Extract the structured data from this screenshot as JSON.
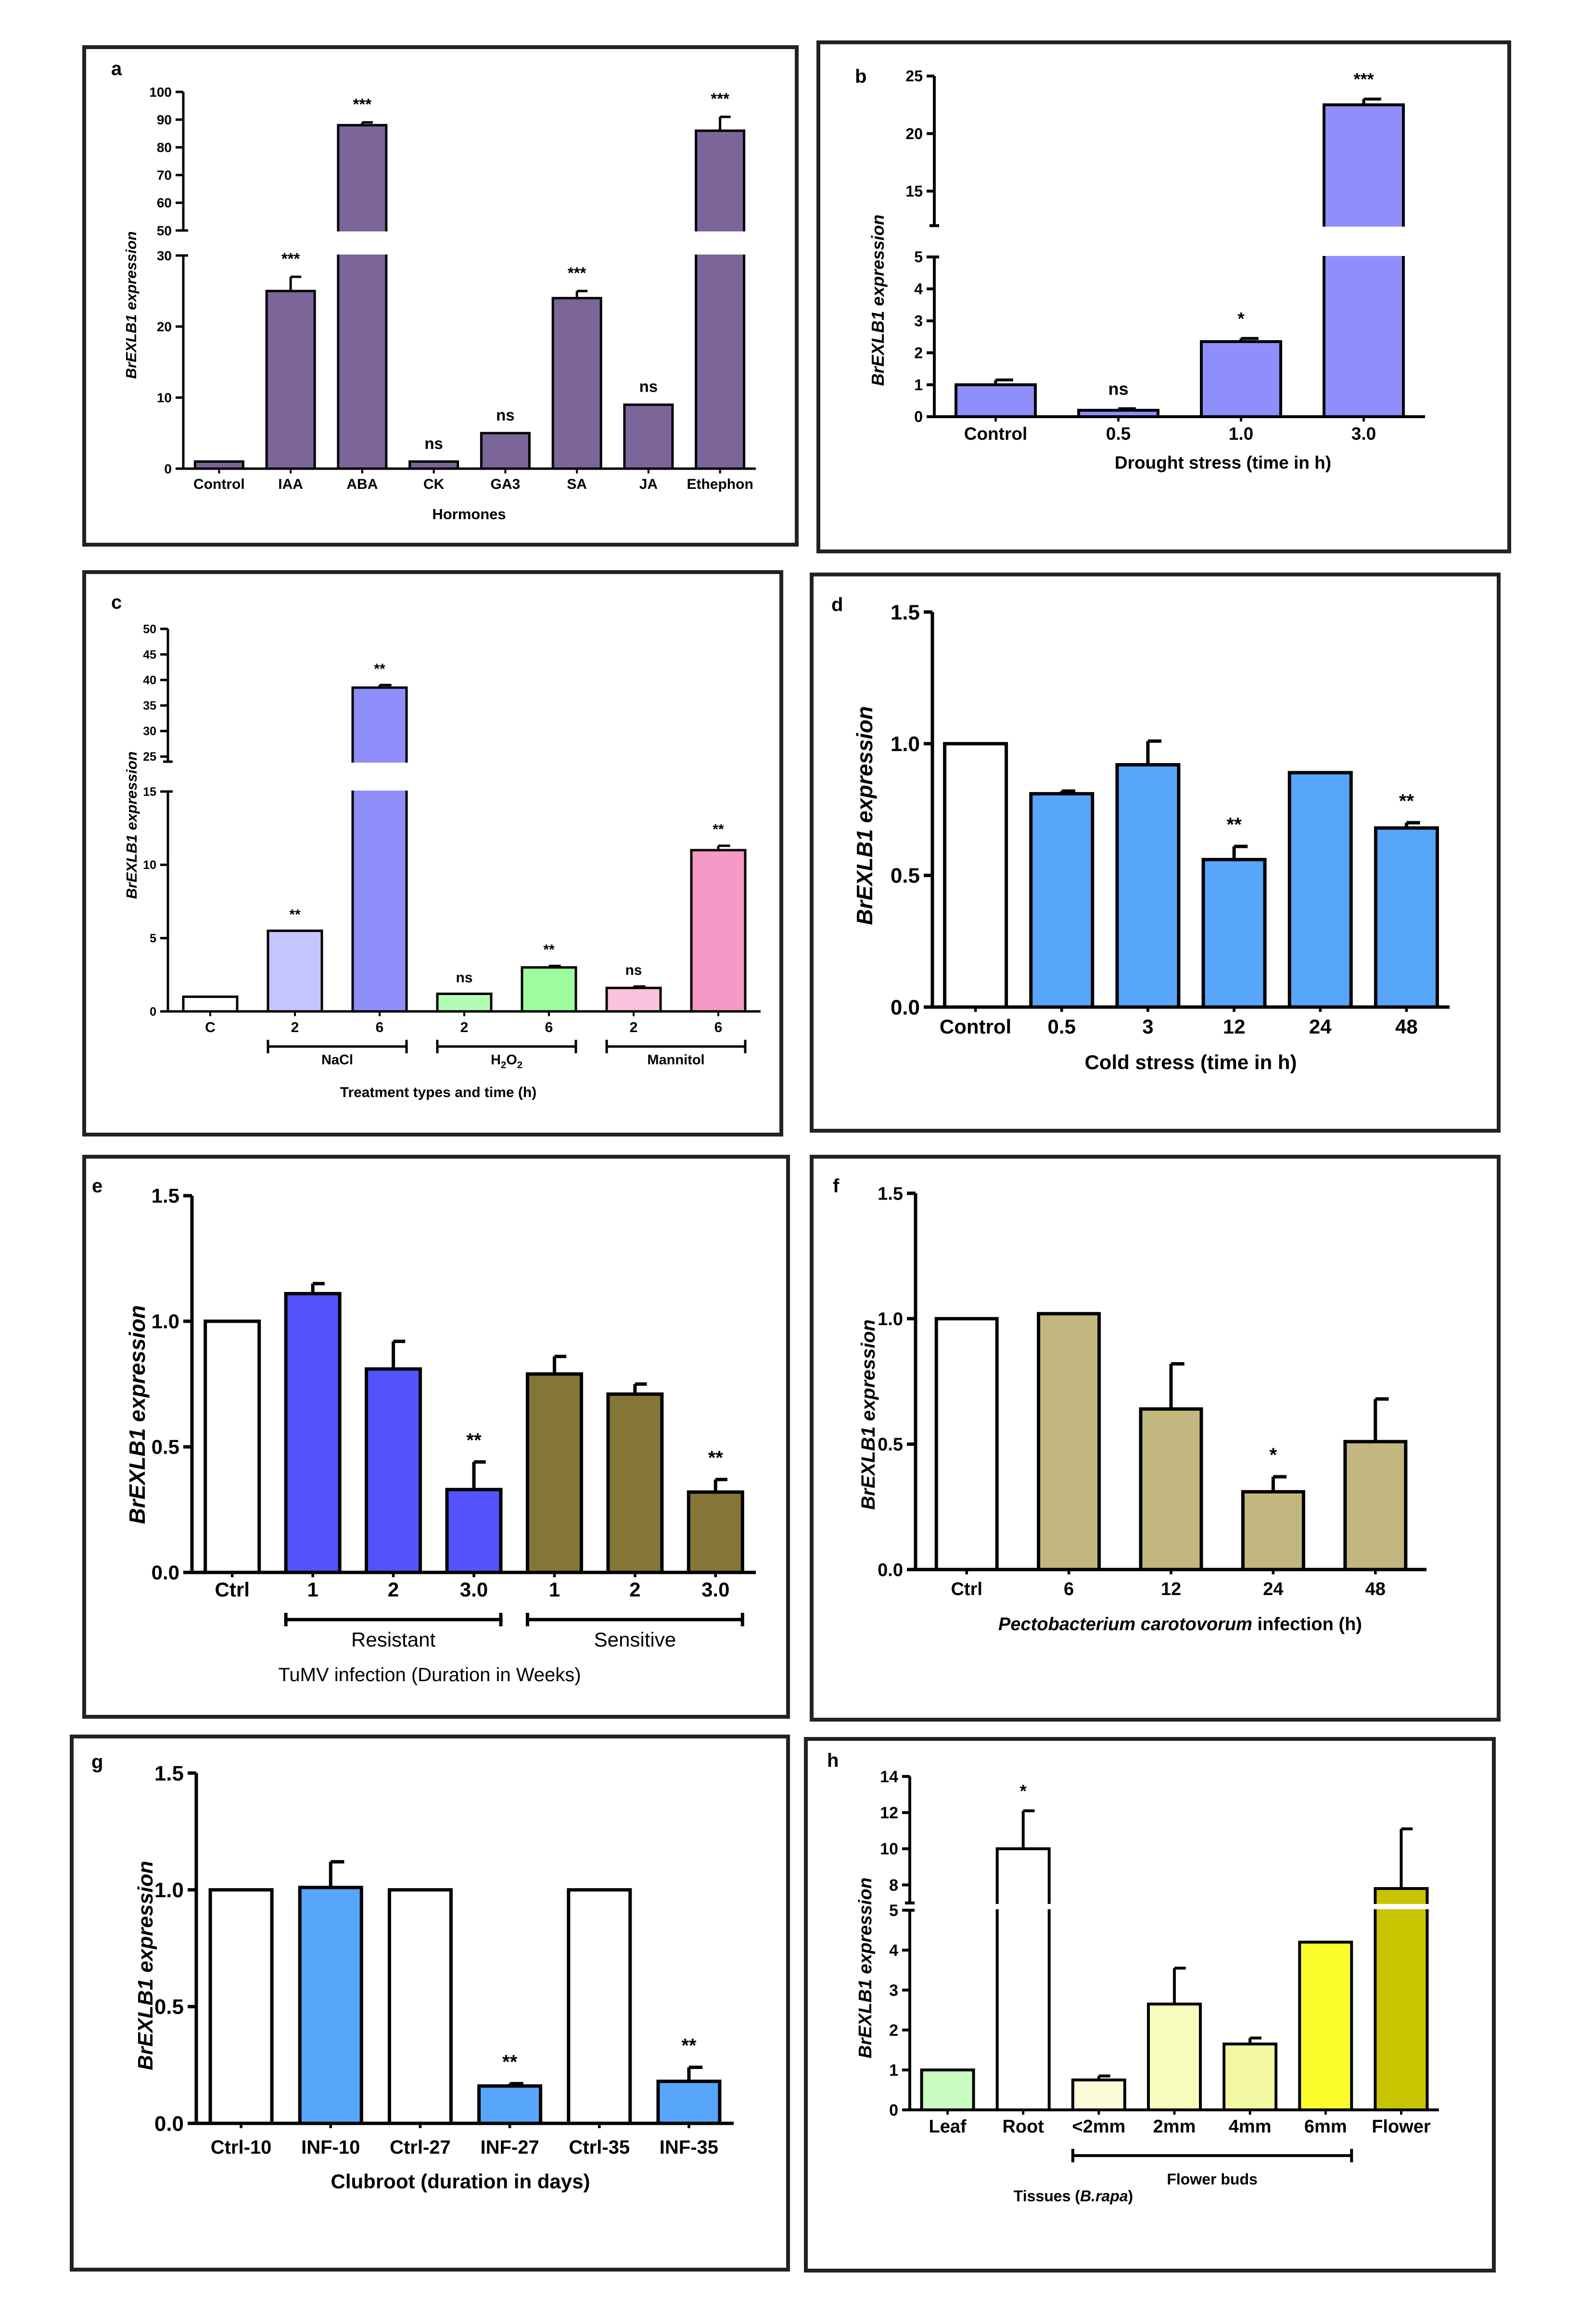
{
  "chart_data": [
    {
      "type": "bar",
      "panel_label": "a",
      "ylabel": "BrEXLB1 expression",
      "xlabel": "Hormones",
      "categories": [
        "Control",
        "IAA",
        "ABA",
        "CK",
        "GA3",
        "SA",
        "JA",
        "Ethephon"
      ],
      "values": [
        1,
        25,
        88,
        1,
        5,
        24,
        9,
        86
      ],
      "errors": [
        0,
        2,
        1,
        0,
        0,
        1,
        0,
        5
      ],
      "significance": [
        "",
        "***",
        "***",
        "ns",
        "ns",
        "***",
        "ns",
        "***"
      ],
      "lower_range": [
        0,
        30
      ],
      "upper_range": [
        50,
        100
      ],
      "lower_ticks": [
        "0",
        "10",
        "20",
        "30"
      ],
      "upper_ticks": [
        "50",
        "60",
        "70",
        "80",
        "90",
        "100"
      ],
      "bar_colors": [
        "#7b6599",
        "#7b6599",
        "#7b6599",
        "#7b6599",
        "#7b6599",
        "#7b6599",
        "#7b6599",
        "#7b6599"
      ]
    },
    {
      "type": "bar",
      "panel_label": "b",
      "ylabel": "BrEXLB1 expression",
      "xlabel": "Drought stress (time in h)",
      "categories": [
        "Control",
        "0.5",
        "1.0",
        "3.0"
      ],
      "values": [
        1,
        0.2,
        2.35,
        22.5
      ],
      "errors": [
        0.15,
        0.05,
        0.1,
        0.5
      ],
      "significance": [
        "",
        "ns",
        "*",
        "***"
      ],
      "lower_range": [
        0,
        5
      ],
      "upper_range": [
        12,
        25
      ],
      "lower_ticks": [
        "0",
        "1",
        "2",
        "3",
        "4",
        "5"
      ],
      "upper_ticks": [
        "15",
        "20",
        "25"
      ],
      "bar_colors": [
        "#8f8ffc",
        "#8f8ffc",
        "#8f8ffc",
        "#8f8ffc"
      ]
    },
    {
      "type": "bar",
      "panel_label": "c",
      "ylabel": "BrEXLB1 expression",
      "xlabel": "Treatment types and time (h)",
      "categories": [
        "C",
        "2",
        "6",
        "2",
        "6",
        "2",
        "6"
      ],
      "values": [
        1,
        5.5,
        38.5,
        1.2,
        3,
        1.6,
        11
      ],
      "errors": [
        0,
        0,
        0.5,
        0,
        0.1,
        0.1,
        0.3
      ],
      "significance": [
        "",
        "**",
        "**",
        "ns",
        "**",
        "ns",
        "**"
      ],
      "groups": [
        {
          "label": "NaCl",
          "subscript": "",
          "start": 1,
          "end": 2
        },
        {
          "label": "H",
          "subscript": "2",
          "label_tail": "O",
          "subscript_tail": "2",
          "start": 3,
          "end": 4
        },
        {
          "label": "Mannitol",
          "subscript": "",
          "start": 5,
          "end": 6
        }
      ],
      "lower_range": [
        0,
        15
      ],
      "upper_range": [
        24,
        50
      ],
      "lower_ticks": [
        "0",
        "5",
        "10",
        "15"
      ],
      "upper_ticks": [
        "25",
        "30",
        "35",
        "40",
        "45",
        "50"
      ],
      "bar_colors": [
        "#ffffff",
        "#c5c5fd",
        "#8f8ffc",
        "#b3fbb3",
        "#9dfc9d",
        "#fbc2de",
        "#f699c6"
      ]
    },
    {
      "type": "bar",
      "panel_label": "d",
      "ylabel": "BrEXLB1 expression",
      "xlabel": "Cold stress (time in h)",
      "categories": [
        "Control",
        "0.5",
        "3",
        "12",
        "24",
        "48"
      ],
      "values": [
        1.0,
        0.81,
        0.92,
        0.56,
        0.89,
        0.68
      ],
      "errors": [
        0,
        0.01,
        0.09,
        0.05,
        0,
        0.02
      ],
      "significance": [
        "",
        "",
        "",
        "**",
        "",
        "**"
      ],
      "ylim": [
        0,
        1.5
      ],
      "yticks": [
        "0.0",
        "0.5",
        "1.0",
        "1.5"
      ],
      "bar_colors": [
        "#ffffff",
        "#57a6fc",
        "#57a6fc",
        "#57a6fc",
        "#57a6fc",
        "#57a6fc"
      ]
    },
    {
      "type": "bar",
      "panel_label": "e",
      "ylabel": "BrEXLB1 expression",
      "xlabel": "TuMV infection (Duration in Weeks)",
      "categories": [
        "Ctrl",
        "1",
        "2",
        "3.0",
        "1",
        "2",
        "3.0"
      ],
      "values": [
        1.0,
        1.11,
        0.81,
        0.33,
        0.79,
        0.71,
        0.32
      ],
      "errors": [
        0,
        0.04,
        0.11,
        0.11,
        0.07,
        0.04,
        0.05
      ],
      "significance": [
        "",
        "",
        "",
        "**",
        "",
        "",
        "**"
      ],
      "groups": [
        {
          "label": "Resistant",
          "start": 1,
          "end": 3
        },
        {
          "label": "Sensitive",
          "start": 4,
          "end": 6
        }
      ],
      "ylim": [
        0,
        1.5
      ],
      "yticks": [
        "0.0",
        "0.5",
        "1.0",
        "1.5"
      ],
      "bar_colors": [
        "#ffffff",
        "#5353fc",
        "#5353fc",
        "#5353fc",
        "#847637",
        "#847637",
        "#847637"
      ]
    },
    {
      "type": "bar",
      "panel_label": "f",
      "ylabel": "BrEXLB1 expression",
      "xlabel_italic": "Pectobacterium carotovorum",
      "xlabel_rest": " infection (h)",
      "categories": [
        "Ctrl",
        "6",
        "12",
        "24",
        "48"
      ],
      "values": [
        1.0,
        1.02,
        0.64,
        0.31,
        0.51
      ],
      "errors": [
        0,
        0,
        0.18,
        0.06,
        0.17
      ],
      "significance": [
        "",
        "",
        "",
        "*",
        ""
      ],
      "ylim": [
        0,
        1.5
      ],
      "yticks": [
        "0.0",
        "0.5",
        "1.0",
        "1.5"
      ],
      "bar_colors": [
        "#ffffff",
        "#c2b77f",
        "#c2b77f",
        "#c2b77f",
        "#c2b77f"
      ]
    },
    {
      "type": "bar",
      "panel_label": "g",
      "ylabel": "BrEXLB1 expression",
      "xlabel": "Clubroot (duration in days)",
      "categories": [
        "Ctrl-10",
        "INF-10",
        "Ctrl-27",
        "INF-27",
        "Ctrl-35",
        "INF-35"
      ],
      "values": [
        1.0,
        1.01,
        1.0,
        0.16,
        1.0,
        0.18
      ],
      "errors": [
        0,
        0.11,
        0,
        0.01,
        0,
        0.06
      ],
      "significance": [
        "",
        "",
        "",
        "**",
        "",
        "**"
      ],
      "ylim": [
        0,
        1.5
      ],
      "yticks": [
        "0.0",
        "0.5",
        "1.0",
        "1.5"
      ],
      "bar_colors": [
        "#ffffff",
        "#57a6fc",
        "#ffffff",
        "#57a6fc",
        "#ffffff",
        "#57a6fc"
      ]
    },
    {
      "type": "bar",
      "panel_label": "h",
      "ylabel": "BrEXLB1 expression",
      "xlabel": "Tissues (",
      "xlabel_italic": "B.rapa",
      "xlabel_close": ")",
      "categories": [
        "Leaf",
        "Root",
        "<2mm",
        "2mm",
        "4mm",
        "6mm",
        "Flower"
      ],
      "values": [
        1,
        10,
        0.75,
        2.65,
        1.65,
        4.2,
        7.8
      ],
      "errors": [
        0,
        2.1,
        0.1,
        0.9,
        0.15,
        0,
        3.3
      ],
      "significance": [
        "",
        "*",
        "",
        "",
        "",
        "",
        ""
      ],
      "groups": [
        {
          "label": "Flower buds",
          "start": 2,
          "end": 5
        }
      ],
      "lower_range": [
        0,
        5
      ],
      "upper_range": [
        7,
        14
      ],
      "lower_ticks": [
        "0",
        "1",
        "2",
        "3",
        "4",
        "5"
      ],
      "upper_ticks": [
        "8",
        "10",
        "12",
        "14"
      ],
      "bar_colors": [
        "#c9fcbf",
        "#ffffff",
        "#fcfbd9",
        "#f7fcbc",
        "#f3f9a2",
        "#fcfc2c",
        "#c9c400"
      ]
    }
  ]
}
